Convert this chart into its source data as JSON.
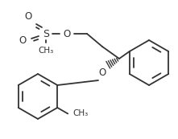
{
  "bg_color": "#ffffff",
  "line_color": "#333333",
  "lw": 1.3,
  "figsize": [
    2.21,
    1.73
  ],
  "dpi": 100,
  "xlim": [
    0,
    221
  ],
  "ylim": [
    0,
    173
  ]
}
